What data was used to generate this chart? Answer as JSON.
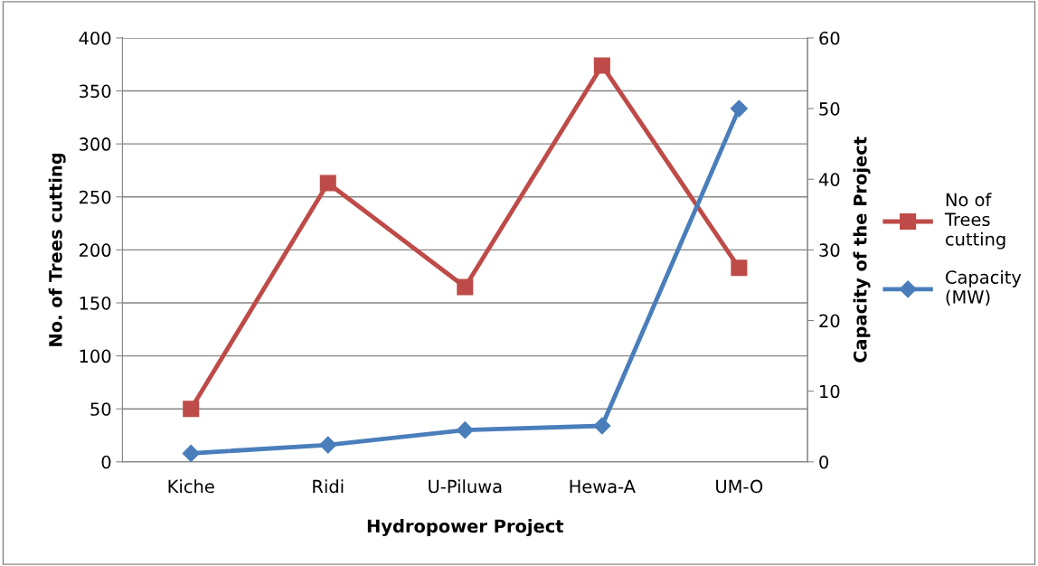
{
  "chart_data": {
    "type": "line",
    "xlabel": "Hydropower Project",
    "ylabel": "No. of Trees cutting",
    "y2label": "Capacity of the Project",
    "categories": [
      "Kiche",
      "Ridi",
      "U-Piluwa",
      "Hewa-A",
      "UM-O"
    ],
    "series": [
      {
        "name": "No of Trees cutting",
        "color": "#be4b48",
        "marker": "square",
        "values": [
          50,
          263,
          165,
          374,
          183
        ]
      },
      {
        "name": "Capacity (MW)",
        "color": "#4a7ebb",
        "marker": "diamond",
        "axis": "y2",
        "values": [
          1.2,
          2.4,
          4.5,
          5.1,
          50
        ]
      }
    ],
    "ylim": [
      0,
      400
    ],
    "yticks": [
      0,
      50,
      100,
      150,
      200,
      250,
      300,
      350,
      400
    ],
    "y2lim": [
      0,
      60
    ],
    "y2ticks": [
      0,
      10,
      20,
      30,
      40,
      50,
      60
    ],
    "grid": "y",
    "legend": "right",
    "line_style": "solid"
  }
}
